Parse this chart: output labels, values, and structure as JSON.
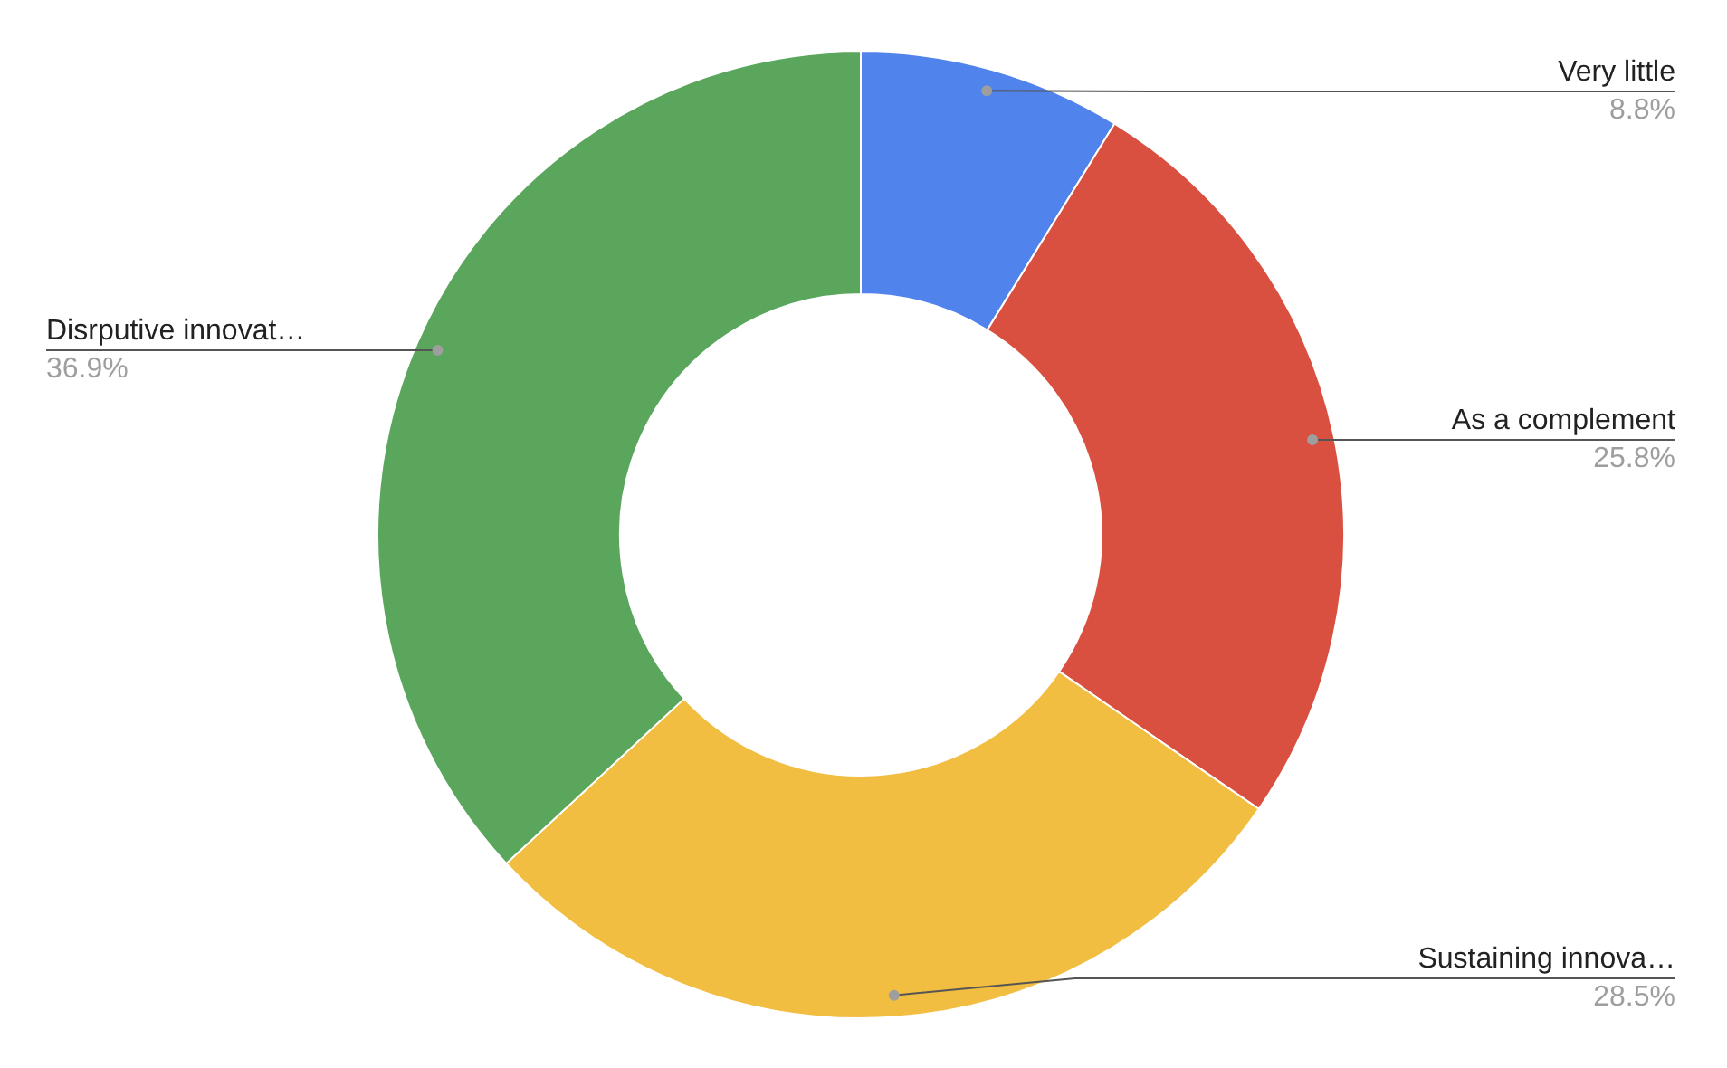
{
  "chart_data": {
    "type": "donut",
    "categories": [
      "Very little",
      "As a complement",
      "Sustaining innova…",
      "Disrputive innovat…"
    ],
    "values": [
      8.8,
      25.8,
      28.5,
      36.9
    ],
    "colors": [
      "#5083eb",
      "#d95040",
      "#f2be42",
      "#59a65c"
    ],
    "value_labels": [
      "8.8%",
      "25.8%",
      "28.5%",
      "36.9%"
    ]
  }
}
